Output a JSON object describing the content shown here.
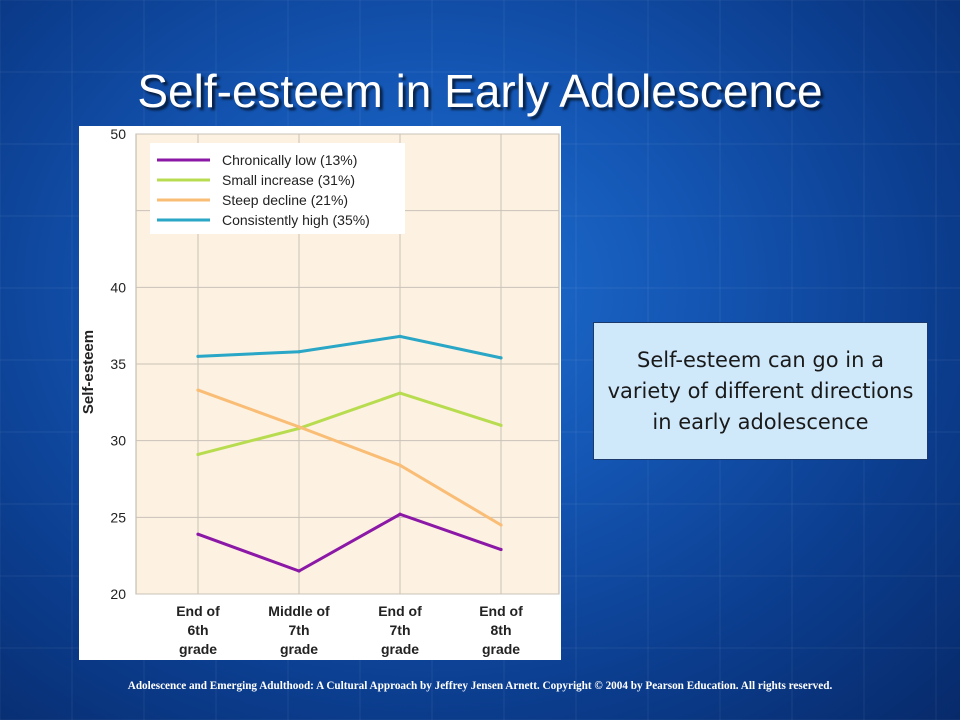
{
  "slide": {
    "title": "Self-esteem in Early Adolescence",
    "callout": "Self-esteem can go in a variety of different directions in early adolescence",
    "footer": "Adolescence and Emerging Adulthood: A Cultural Approach by Jeffrey Jensen Arnett.  Copyright © 2004 by Pearson Education. All rights reserved."
  },
  "colors": {
    "plot_background": "#fdf1e1",
    "gridline": "#c9c2b8"
  },
  "chart_data": {
    "type": "line",
    "title": "",
    "xlabel": "",
    "ylabel": "Self-esteem",
    "ylim": [
      20,
      50
    ],
    "yticks": [
      20,
      25,
      30,
      35,
      40,
      45,
      50
    ],
    "ytick_labels": [
      "20",
      "25",
      "30",
      "35",
      "40",
      "",
      "50"
    ],
    "categories": [
      [
        "End of",
        "6th",
        "grade"
      ],
      [
        "Middle of",
        "7th",
        "grade"
      ],
      [
        "End of",
        "7th",
        "grade"
      ],
      [
        "End of",
        "8th",
        "grade"
      ]
    ],
    "grid": true,
    "legend_position": "top-left",
    "series": [
      {
        "name": "Chronically low (13%)",
        "color": "#8b18a6",
        "values": [
          23.9,
          21.5,
          25.2,
          22.9
        ]
      },
      {
        "name": "Small increase (31%)",
        "color": "#b8dc4f",
        "values": [
          29.1,
          30.8,
          33.1,
          31.0
        ]
      },
      {
        "name": "Steep decline (21%)",
        "color": "#f9bd76",
        "values": [
          33.3,
          30.9,
          28.4,
          24.5
        ]
      },
      {
        "name": "Consistently high (35%)",
        "color": "#2aa6c6",
        "values": [
          35.5,
          35.8,
          36.8,
          35.4
        ]
      }
    ]
  }
}
